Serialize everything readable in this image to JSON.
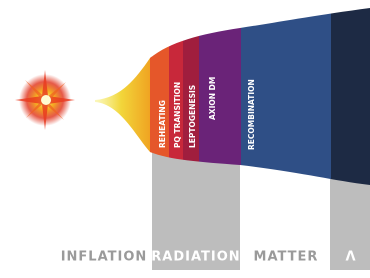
{
  "eras": [
    "INFLATION",
    "RADIATION",
    "MATTER",
    "Λ"
  ],
  "events": [
    "REHEATING",
    "PQ TRANSITION",
    "LEPTOGENESIS",
    "AXION DM",
    "RECOMBINATION"
  ]
}
